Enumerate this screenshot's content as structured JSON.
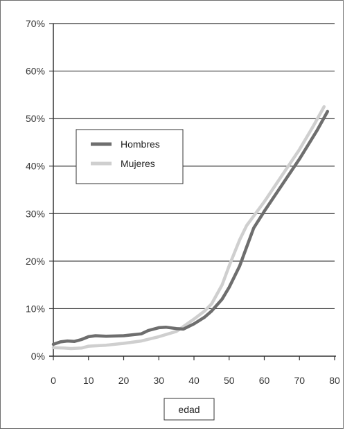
{
  "chart_data": {
    "type": "line",
    "title": "",
    "xlabel": "edad",
    "ylabel": "",
    "xlim": [
      0,
      80
    ],
    "ylim": [
      0,
      70
    ],
    "x_ticks": [
      "0",
      "10",
      "20",
      "30",
      "40",
      "50",
      "60",
      "70",
      "80"
    ],
    "y_ticks": [
      "0%",
      "10%",
      "20%",
      "30%",
      "40%",
      "50%",
      "60%",
      "70%"
    ],
    "grid": "horizontal",
    "legend_position": "center-left",
    "series": [
      {
        "name": "Hombres",
        "color": "#6e6e6e",
        "points": [
          [
            0,
            2.5
          ],
          [
            2,
            3.0
          ],
          [
            4,
            3.2
          ],
          [
            6,
            3.1
          ],
          [
            8,
            3.5
          ],
          [
            10,
            4.1
          ],
          [
            12,
            4.3
          ],
          [
            15,
            4.2
          ],
          [
            20,
            4.3
          ],
          [
            25,
            4.7
          ],
          [
            27,
            5.4
          ],
          [
            30,
            6.0
          ],
          [
            32,
            6.1
          ],
          [
            35,
            5.8
          ],
          [
            37,
            5.7
          ],
          [
            40,
            6.8
          ],
          [
            43,
            8.2
          ],
          [
            45,
            9.5
          ],
          [
            48,
            12.0
          ],
          [
            50,
            14.5
          ],
          [
            53,
            19.0
          ],
          [
            55,
            23.0
          ],
          [
            57,
            27.0
          ],
          [
            60,
            30.5
          ],
          [
            65,
            36.0
          ],
          [
            70,
            41.5
          ],
          [
            75,
            47.5
          ],
          [
            78,
            51.5
          ]
        ]
      },
      {
        "name": "Mujeres",
        "color": "#cfcfcf",
        "points": [
          [
            0,
            1.8
          ],
          [
            3,
            1.7
          ],
          [
            5,
            1.6
          ],
          [
            8,
            1.7
          ],
          [
            10,
            2.1
          ],
          [
            15,
            2.3
          ],
          [
            20,
            2.7
          ],
          [
            25,
            3.2
          ],
          [
            30,
            4.1
          ],
          [
            35,
            5.2
          ],
          [
            40,
            7.8
          ],
          [
            43,
            9.5
          ],
          [
            45,
            11.0
          ],
          [
            48,
            15.0
          ],
          [
            50,
            19.0
          ],
          [
            53,
            24.5
          ],
          [
            55,
            27.5
          ],
          [
            57,
            29.5
          ],
          [
            60,
            32.5
          ],
          [
            65,
            38.0
          ],
          [
            70,
            43.5
          ],
          [
            74,
            48.5
          ],
          [
            77,
            52.5
          ]
        ]
      }
    ]
  }
}
